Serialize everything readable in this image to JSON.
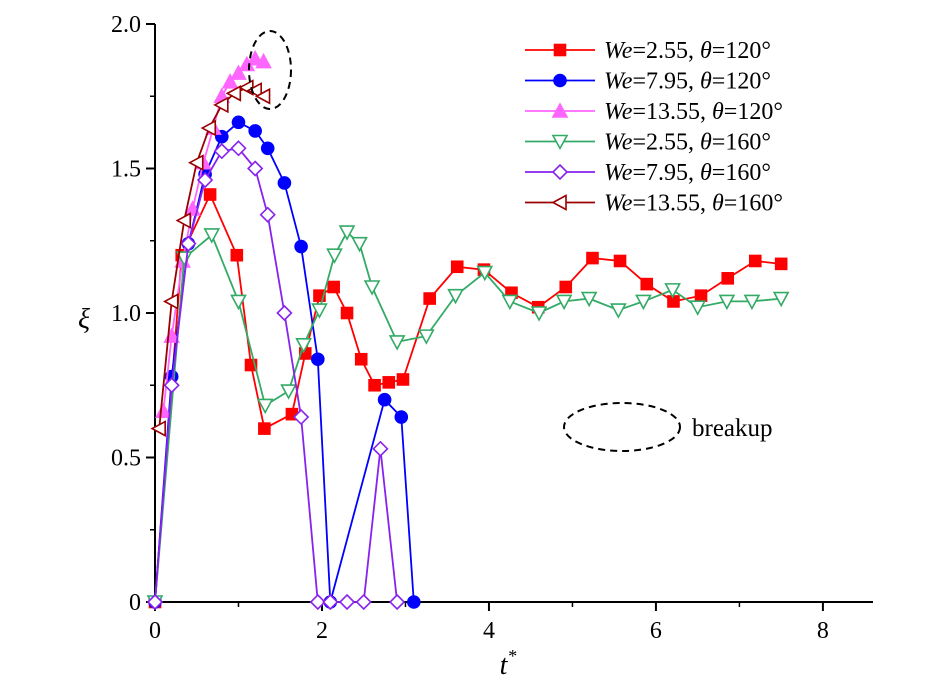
{
  "chart_data": {
    "type": "line",
    "title": "",
    "xlabel": "t*",
    "ylabel": "ξ",
    "xlim": [
      0,
      8.6
    ],
    "ylim": [
      0,
      2.0
    ],
    "xticks": [
      "0",
      "2",
      "4",
      "6",
      "8"
    ],
    "yticks": [
      "0",
      "0.5",
      "1.0",
      "1.5",
      "2.0"
    ],
    "grid": false,
    "legend_position": "top-right",
    "annotation": "breakup",
    "series": [
      {
        "name": "We=2.55, θ=120°",
        "we_value": "2.55",
        "theta_value": "120",
        "color": "#ff0000",
        "marker": "square",
        "filled": true,
        "x": [
          0,
          0.32,
          0.66,
          0.98,
          1.15,
          1.31,
          1.64,
          1.8,
          1.97,
          2.14,
          2.3,
          2.47,
          2.63,
          2.8,
          2.97,
          3.29,
          3.62,
          3.94,
          4.27,
          4.59,
          4.92,
          5.24,
          5.57,
          5.89,
          6.21,
          6.54,
          6.86,
          7.19,
          7.5
        ],
        "y": [
          0,
          1.2,
          1.41,
          1.2,
          0.82,
          0.6,
          0.65,
          0.86,
          1.06,
          1.09,
          1.0,
          0.84,
          0.75,
          0.76,
          0.77,
          1.05,
          1.16,
          1.15,
          1.07,
          1.02,
          1.09,
          1.19,
          1.18,
          1.1,
          1.04,
          1.06,
          1.12,
          1.18,
          1.17
        ]
      },
      {
        "name": "We=7.95, θ=120°",
        "we_value": "7.95",
        "theta_value": "120",
        "color": "#0000ff",
        "marker": "circle",
        "filled": true,
        "x": [
          0,
          0.2,
          0.4,
          0.6,
          0.8,
          1.0,
          1.2,
          1.35,
          1.55,
          1.75,
          1.95,
          2.1,
          2.75,
          2.95,
          3.1
        ],
        "y": [
          0,
          0.78,
          1.24,
          1.48,
          1.61,
          1.66,
          1.63,
          1.57,
          1.45,
          1.23,
          0.84,
          0,
          0.7,
          0.64,
          0
        ]
      },
      {
        "name": "We=13.55, θ=120°",
        "we_value": "13.55",
        "theta_value": "120",
        "color": "#ff66ff",
        "marker": "triangle-up",
        "filled": true,
        "x": [
          0.1,
          0.2,
          0.33,
          0.45,
          0.58,
          0.7,
          0.8,
          0.9,
          1.0,
          1.1,
          1.2,
          1.3
        ],
        "y": [
          0.66,
          0.92,
          1.18,
          1.36,
          1.52,
          1.64,
          1.75,
          1.8,
          1.83,
          1.86,
          1.88,
          1.87
        ]
      },
      {
        "name": "We=2.55, θ=160°",
        "we_value": "2.55",
        "theta_value": "160",
        "color": "#33aa66",
        "marker": "triangle-down",
        "filled": false,
        "x": [
          0,
          0.35,
          0.68,
          1.0,
          1.32,
          1.6,
          1.78,
          1.97,
          2.15,
          2.3,
          2.45,
          2.6,
          2.9,
          3.25,
          3.6,
          3.95,
          4.25,
          4.6,
          4.9,
          5.2,
          5.55,
          5.85,
          6.2,
          6.5,
          6.85,
          7.15,
          7.5
        ],
        "y": [
          0,
          1.19,
          1.27,
          1.04,
          0.68,
          0.73,
          0.89,
          1.01,
          1.2,
          1.28,
          1.24,
          1.09,
          0.9,
          0.92,
          1.06,
          1.14,
          1.04,
          1.0,
          1.04,
          1.05,
          1.01,
          1.04,
          1.08,
          1.02,
          1.04,
          1.04,
          1.05
        ]
      },
      {
        "name": "We=7.95, θ=160°",
        "we_value": "7.95",
        "theta_value": "160",
        "color": "#8822ee",
        "marker": "diamond",
        "filled": false,
        "x": [
          0,
          0.2,
          0.4,
          0.6,
          0.8,
          1.0,
          1.2,
          1.35,
          1.55,
          1.75,
          1.95,
          2.1,
          2.3,
          2.5,
          2.7,
          2.9
        ],
        "y": [
          0,
          0.75,
          1.24,
          1.46,
          1.56,
          1.57,
          1.5,
          1.34,
          1.0,
          0.64,
          0,
          0,
          0,
          0,
          0.53,
          0
        ]
      },
      {
        "name": "We=13.55, θ=160°",
        "we_value": "13.55",
        "theta_value": "160",
        "color": "#990000",
        "marker": "triangle-left",
        "filled": false,
        "x": [
          0.05,
          0.2,
          0.35,
          0.5,
          0.65,
          0.8,
          0.95,
          1.1,
          1.2,
          1.3
        ],
        "y": [
          0.6,
          1.04,
          1.32,
          1.52,
          1.64,
          1.72,
          1.76,
          1.78,
          1.77,
          1.75
        ]
      }
    ]
  }
}
